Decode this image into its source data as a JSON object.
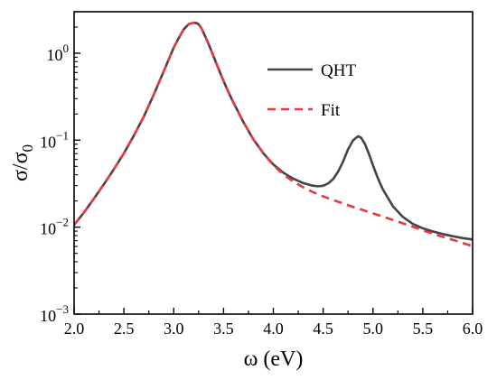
{
  "chart_data": {
    "type": "line",
    "title": "",
    "xlabel": "ω (eV)",
    "ylabel": {
      "main": "σ/σ",
      "sub": "0"
    },
    "xlim": [
      2.0,
      6.0
    ],
    "ylim": [
      0.001,
      3.0
    ],
    "yscale": "log",
    "grid": false,
    "legend_position": "top-right",
    "x_ticks": {
      "values": [
        2.0,
        2.5,
        3.0,
        3.5,
        4.0,
        4.5,
        5.0,
        5.5,
        6.0
      ],
      "labels": [
        "2.0",
        "2.5",
        "3.0",
        "3.5",
        "4.0",
        "4.5",
        "5.0",
        "5.5",
        "6.0"
      ]
    },
    "y_ticks": [
      {
        "value": 0.001,
        "base": "10",
        "exp": "−3"
      },
      {
        "value": 0.01,
        "base": "10",
        "exp": "−2"
      },
      {
        "value": 0.1,
        "base": "10",
        "exp": "−1"
      },
      {
        "value": 1,
        "base": "10",
        "exp": "0"
      }
    ],
    "series": [
      {
        "name": "QHT",
        "color": "#444444",
        "style": "solid",
        "x": [
          2.0,
          2.1,
          2.2,
          2.3,
          2.4,
          2.5,
          2.6,
          2.7,
          2.8,
          2.9,
          3.0,
          3.05,
          3.1,
          3.15,
          3.2,
          3.23,
          3.25,
          3.28,
          3.32,
          3.36,
          3.4,
          3.45,
          3.5,
          3.55,
          3.6,
          3.7,
          3.8,
          3.9,
          4.0,
          4.1,
          4.2,
          4.3,
          4.4,
          4.45,
          4.5,
          4.55,
          4.6,
          4.65,
          4.7,
          4.75,
          4.8,
          4.85,
          4.88,
          4.92,
          4.96,
          5.0,
          5.05,
          5.1,
          5.2,
          5.3,
          5.4,
          5.5,
          5.6,
          5.7,
          5.8,
          5.9,
          6.0
        ],
        "y": [
          0.0106,
          0.0148,
          0.0214,
          0.0312,
          0.0465,
          0.0708,
          0.113,
          0.187,
          0.335,
          0.622,
          1.16,
          1.49,
          1.88,
          2.16,
          2.24,
          2.22,
          2.15,
          1.92,
          1.53,
          1.2,
          0.92,
          0.66,
          0.48,
          0.355,
          0.27,
          0.161,
          0.102,
          0.0706,
          0.0526,
          0.0423,
          0.0361,
          0.0321,
          0.0299,
          0.0295,
          0.0299,
          0.0318,
          0.0357,
          0.0435,
          0.0568,
          0.0787,
          0.0996,
          0.111,
          0.107,
          0.09,
          0.0693,
          0.0513,
          0.0363,
          0.0271,
          0.0174,
          0.0131,
          0.0109,
          0.00971,
          0.00892,
          0.00833,
          0.00787,
          0.00748,
          0.00721
        ]
      },
      {
        "name": "Fit",
        "color": "#e8383d",
        "style": "dashed",
        "x": [
          2.0,
          2.1,
          2.2,
          2.3,
          2.4,
          2.5,
          2.6,
          2.7,
          2.8,
          2.9,
          3.0,
          3.05,
          3.1,
          3.15,
          3.2,
          3.23,
          3.25,
          3.28,
          3.32,
          3.36,
          3.4,
          3.45,
          3.5,
          3.55,
          3.6,
          3.7,
          3.8,
          3.9,
          4.0,
          4.1,
          4.2,
          4.3,
          4.4,
          4.5,
          4.6,
          4.8,
          5.0,
          5.2,
          5.4,
          5.6,
          5.8,
          6.0
        ],
        "y": [
          0.0106,
          0.0148,
          0.0214,
          0.0312,
          0.0465,
          0.0708,
          0.113,
          0.187,
          0.335,
          0.622,
          1.16,
          1.49,
          1.88,
          2.16,
          2.24,
          2.22,
          2.15,
          1.92,
          1.53,
          1.2,
          0.92,
          0.66,
          0.48,
          0.355,
          0.27,
          0.161,
          0.102,
          0.0706,
          0.0516,
          0.0405,
          0.0334,
          0.0287,
          0.0252,
          0.0226,
          0.0205,
          0.0171,
          0.0144,
          0.0121,
          0.0101,
          0.0084,
          0.00715,
          0.00605
        ]
      }
    ]
  }
}
